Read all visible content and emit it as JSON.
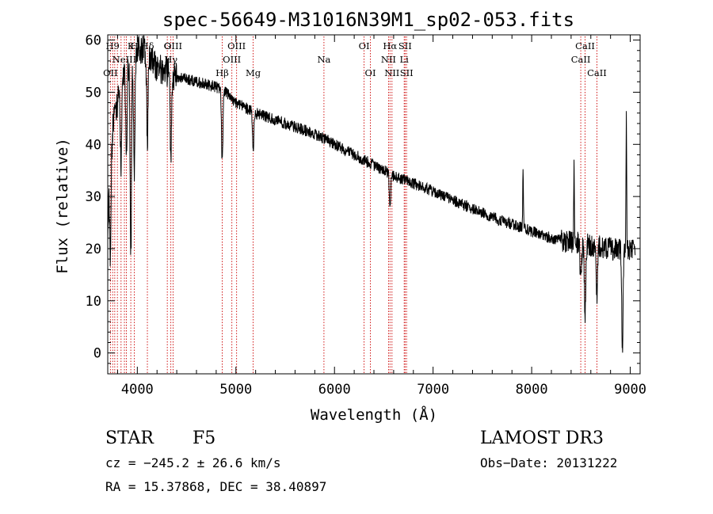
{
  "chart_data": {
    "type": "line",
    "title": "spec-56649-M31016N39M1_sp02-053.fits",
    "xlabel": "Wavelength (Å)",
    "ylabel": "Flux (relative)",
    "xlim": [
      3700,
      9100
    ],
    "ylim": [
      -4,
      61
    ],
    "x_ticks": [
      4000,
      5000,
      6000,
      7000,
      8000,
      9000
    ],
    "x_tick_labels": [
      "4000",
      "5000",
      "6000",
      "7000",
      "8000",
      "9000"
    ],
    "y_ticks": [
      0,
      10,
      20,
      30,
      40,
      50,
      60
    ],
    "y_tick_labels": [
      "0",
      "10",
      "20",
      "30",
      "40",
      "50",
      "60"
    ],
    "continuum": [
      [
        3700,
        22
      ],
      [
        3720,
        38
      ],
      [
        3760,
        44
      ],
      [
        3800,
        48
      ],
      [
        3850,
        52
      ],
      [
        3900,
        55
      ],
      [
        3950,
        57
      ],
      [
        4000,
        58
      ],
      [
        4050,
        58.5
      ],
      [
        4100,
        57.5
      ],
      [
        4200,
        55
      ],
      [
        4300,
        54
      ],
      [
        4400,
        53
      ],
      [
        4600,
        52
      ],
      [
        4800,
        51
      ],
      [
        4900,
        50
      ],
      [
        5000,
        48
      ],
      [
        5200,
        46
      ],
      [
        5500,
        44
      ],
      [
        5800,
        42
      ],
      [
        6000,
        40
      ],
      [
        6300,
        37
      ],
      [
        6600,
        34
      ],
      [
        7000,
        31
      ],
      [
        7300,
        28.5
      ],
      [
        7600,
        26
      ],
      [
        7900,
        24
      ],
      [
        8200,
        22
      ],
      [
        8500,
        21
      ],
      [
        8800,
        20
      ],
      [
        9000,
        20
      ],
      [
        9100,
        19
      ]
    ],
    "absorption_features": [
      {
        "x": 3727,
        "depth": 20
      },
      {
        "x": 3835,
        "depth": 14
      },
      {
        "x": 3889,
        "depth": 16
      },
      {
        "x": 3934,
        "depth": 38
      },
      {
        "x": 3969,
        "depth": 22
      },
      {
        "x": 4102,
        "depth": 18
      },
      {
        "x": 4340,
        "depth": 16
      },
      {
        "x": 4861,
        "depth": 14
      },
      {
        "x": 5175,
        "depth": 7
      },
      {
        "x": 6563,
        "depth": 6
      },
      {
        "x": 8498,
        "depth": 8
      },
      {
        "x": 8542,
        "depth": 14
      },
      {
        "x": 8662,
        "depth": 9
      },
      {
        "x": 8920,
        "depth": 20
      }
    ],
    "emission_spikes": [
      {
        "x": 7913,
        "height": 12
      },
      {
        "x": 8430,
        "height": 14
      },
      {
        "x": 8960,
        "height": 26
      }
    ],
    "line_markers": [
      {
        "x": 3727,
        "label": "OII",
        "row": 3
      },
      {
        "x": 3750,
        "label": "H9",
        "row": 1
      },
      {
        "x": 3771,
        "label": "",
        "row": 0
      },
      {
        "x": 3798,
        "label": "",
        "row": 0
      },
      {
        "x": 3835,
        "label": "",
        "row": 0
      },
      {
        "x": 3869,
        "label": "NeIII",
        "row": 2
      },
      {
        "x": 3889,
        "label": "",
        "row": 0
      },
      {
        "x": 3934,
        "label": "K",
        "row": 1
      },
      {
        "x": 3969,
        "label": "H",
        "row": 1
      },
      {
        "x": 4102,
        "label": "Hδ",
        "row": 1
      },
      {
        "x": 4304,
        "label": "G",
        "row": 1
      },
      {
        "x": 4340,
        "label": "Hγ",
        "row": 2
      },
      {
        "x": 4363,
        "label": "OIII",
        "row": 1
      },
      {
        "x": 4861,
        "label": "Hβ",
        "row": 3
      },
      {
        "x": 4959,
        "label": "OIII",
        "row": 2
      },
      {
        "x": 5007,
        "label": "OIII",
        "row": 1
      },
      {
        "x": 5175,
        "label": "Mg",
        "row": 3
      },
      {
        "x": 5893,
        "label": "Na",
        "row": 2
      },
      {
        "x": 6300,
        "label": "OI",
        "row": 1
      },
      {
        "x": 6364,
        "label": "OI",
        "row": 3
      },
      {
        "x": 6548,
        "label": "NII",
        "row": 2
      },
      {
        "x": 6563,
        "label": "Hα",
        "row": 1
      },
      {
        "x": 6583,
        "label": "NII",
        "row": 3
      },
      {
        "x": 6707,
        "label": "Li",
        "row": 2
      },
      {
        "x": 6716,
        "label": "SII",
        "row": 1
      },
      {
        "x": 6731,
        "label": "SII",
        "row": 3
      },
      {
        "x": 8498,
        "label": "CaII",
        "row": 2
      },
      {
        "x": 8542,
        "label": "CaII",
        "row": 1
      },
      {
        "x": 8662,
        "label": "CaII",
        "row": 3
      }
    ],
    "marker_color": "#cc0000",
    "line_color": "#000000"
  },
  "info": {
    "object_class": "STAR",
    "subclass": "F5",
    "survey": "LAMOST DR3",
    "cz": "cz = −245.2 ± 26.6 km/s",
    "obs_date": "Obs−Date: 20131222",
    "coords": "RA =  15.37868, DEC =  38.40897"
  }
}
